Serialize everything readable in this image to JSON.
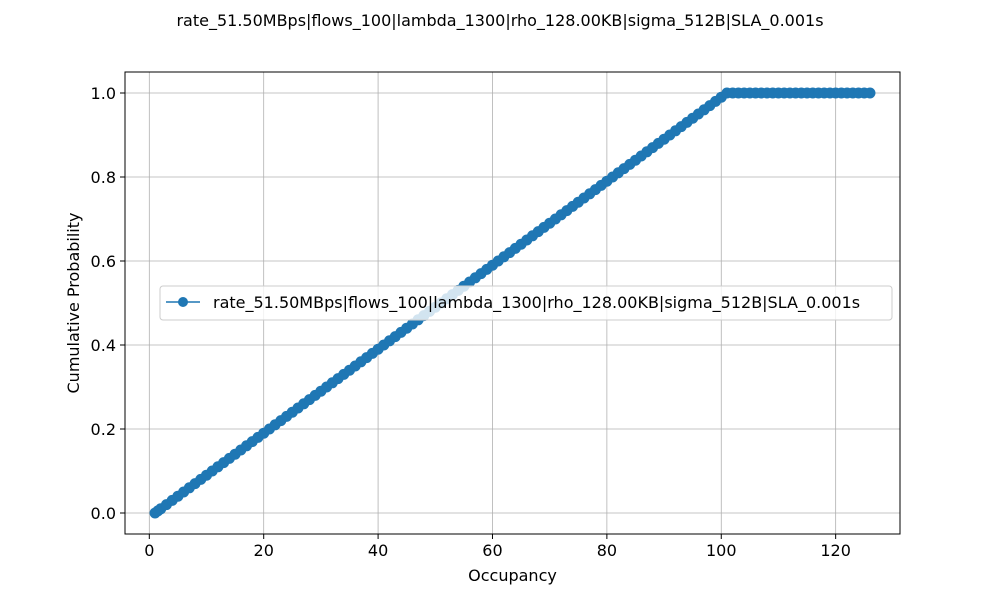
{
  "chart_data": {
    "type": "line",
    "title": "rate_51.50MBps|flows_100|lambda_1300|rho_128.00KB|sigma_512B|SLA_0.001s",
    "xlabel": "Occupancy",
    "ylabel": "Cumulative Probability",
    "xlim": [
      -4.25,
      131.25
    ],
    "ylim": [
      -0.05,
      1.05
    ],
    "x_ticks": [
      0,
      20,
      40,
      60,
      80,
      100,
      120
    ],
    "x_tick_labels": [
      "0",
      "20",
      "40",
      "60",
      "80",
      "100",
      "120"
    ],
    "y_ticks": [
      0.0,
      0.2,
      0.4,
      0.6,
      0.8,
      1.0
    ],
    "y_tick_labels": [
      "0.0",
      "0.2",
      "0.4",
      "0.6",
      "0.8",
      "1.0"
    ],
    "grid": true,
    "legend_position": "center-left",
    "series": [
      {
        "name": "rate_51.50MBps|flows_100|lambda_1300|rho_128.00KB|sigma_512B|SLA_0.001s",
        "color": "#1f77b4",
        "marker": "circle",
        "x": [
          1,
          1.5,
          2,
          3,
          4,
          5,
          6,
          7,
          8,
          9,
          10,
          11,
          12,
          13,
          14,
          15,
          16,
          17,
          18,
          19,
          20,
          21,
          22,
          23,
          24,
          25,
          26,
          27,
          28,
          29,
          30,
          31,
          32,
          33,
          34,
          35,
          36,
          37,
          38,
          39,
          40,
          41,
          42,
          43,
          44,
          45,
          46,
          47,
          48,
          49,
          50,
          51,
          52,
          53,
          54,
          55,
          56,
          57,
          58,
          59,
          60,
          61,
          62,
          63,
          64,
          65,
          66,
          67,
          68,
          69,
          70,
          71,
          72,
          73,
          74,
          75,
          76,
          77,
          78,
          79,
          80,
          81,
          82,
          83,
          84,
          85,
          86,
          87,
          88,
          89,
          90,
          91,
          92,
          93,
          94,
          95,
          96,
          97,
          98,
          99,
          100,
          101,
          102,
          103,
          104,
          105,
          106,
          107,
          108,
          109,
          110,
          111,
          112,
          113,
          114,
          115,
          116,
          117,
          118,
          119,
          120,
          121,
          122,
          123,
          124,
          125,
          126
        ],
        "y": [
          0.0,
          0.005,
          0.01,
          0.02,
          0.03,
          0.04,
          0.05,
          0.06,
          0.07,
          0.08,
          0.09,
          0.1,
          0.11,
          0.12,
          0.13,
          0.14,
          0.15,
          0.16,
          0.17,
          0.18,
          0.19,
          0.2,
          0.21,
          0.22,
          0.23,
          0.24,
          0.25,
          0.26,
          0.27,
          0.28,
          0.29,
          0.3,
          0.31,
          0.32,
          0.33,
          0.34,
          0.35,
          0.36,
          0.37,
          0.38,
          0.39,
          0.4,
          0.41,
          0.42,
          0.43,
          0.44,
          0.45,
          0.46,
          0.47,
          0.48,
          0.49,
          0.5,
          0.51,
          0.52,
          0.53,
          0.54,
          0.55,
          0.56,
          0.57,
          0.58,
          0.59,
          0.6,
          0.61,
          0.62,
          0.63,
          0.64,
          0.65,
          0.66,
          0.67,
          0.68,
          0.69,
          0.7,
          0.71,
          0.72,
          0.73,
          0.74,
          0.75,
          0.76,
          0.77,
          0.78,
          0.79,
          0.8,
          0.81,
          0.82,
          0.83,
          0.84,
          0.85,
          0.86,
          0.87,
          0.88,
          0.89,
          0.9,
          0.91,
          0.92,
          0.93,
          0.94,
          0.95,
          0.96,
          0.97,
          0.98,
          0.99,
          1.0,
          1.0,
          1.0,
          1.0,
          1.0,
          1.0,
          1.0,
          1.0,
          1.0,
          1.0,
          1.0,
          1.0,
          1.0,
          1.0,
          1.0,
          1.0,
          1.0,
          1.0,
          1.0,
          1.0,
          1.0,
          1.0,
          1.0,
          1.0,
          1.0,
          1.0
        ]
      }
    ]
  }
}
